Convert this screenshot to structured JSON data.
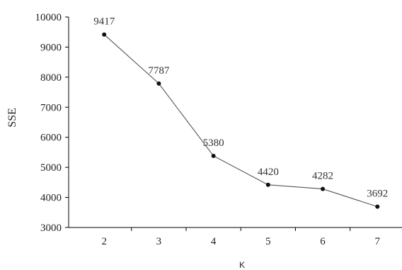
{
  "chart_data": {
    "type": "line",
    "xlabel": "K",
    "ylabel": "SSE",
    "x": [
      2,
      3,
      4,
      5,
      6,
      7
    ],
    "series": [
      {
        "values": [
          9417,
          7787,
          5380,
          4420,
          4282,
          3692
        ]
      }
    ],
    "data_labels": [
      "9417",
      "7787",
      "5380",
      "4420",
      "4282",
      "3692"
    ],
    "y_ticks": [
      "3000",
      "4000",
      "5000",
      "6000",
      "7000",
      "8000",
      "9000",
      "10000"
    ],
    "x_ticks": [
      "2",
      "3",
      "4",
      "5",
      "6",
      "7"
    ],
    "ylim": [
      3000,
      10000
    ],
    "grid": false,
    "colors": {
      "line": "#555555",
      "marker": "#111111",
      "axis": "#000000"
    }
  }
}
